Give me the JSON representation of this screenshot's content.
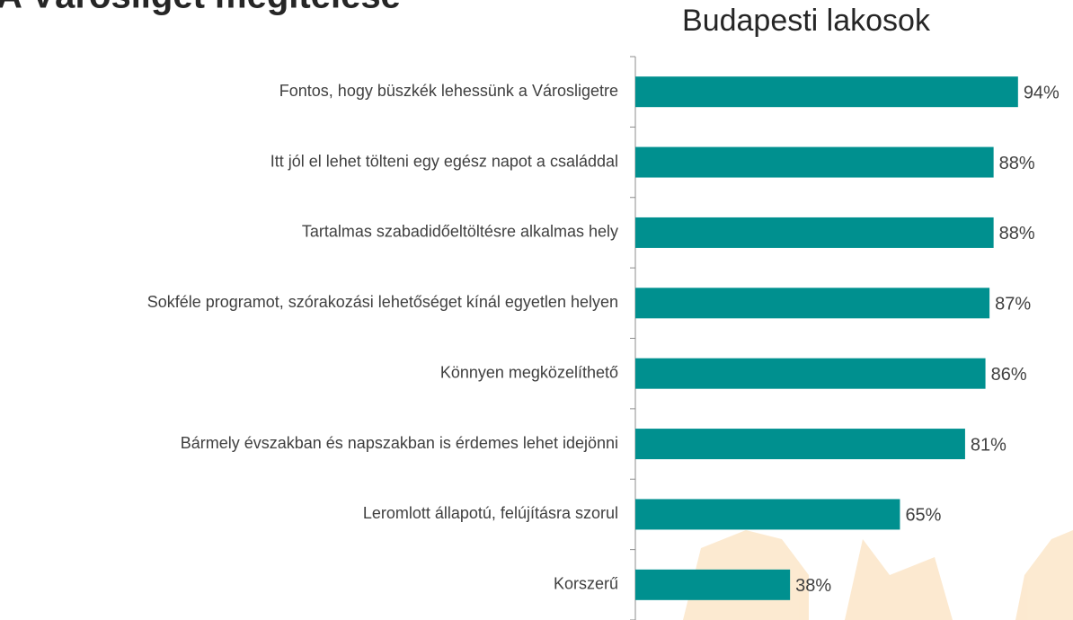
{
  "chart_data": {
    "type": "bar",
    "orientation": "horizontal",
    "title": "A Városliget megítélése",
    "subtitle": "Budapesti lakosok",
    "categories": [
      "Fontos, hogy büszkék lehessünk a Városligetre",
      "Itt jól el lehet tölteni egy egész napot a családdal",
      "Tartalmas szabadidőeltöltésre alkalmas hely",
      "Sokféle programot, szórakozási lehetőséget kínál egyetlen helyen",
      "Könnyen megközelíthető",
      "Bármely évszakban és napszakban is érdemes lehet idejönni",
      "Leromlott állapotú, felújításra szorul",
      "Korszerű"
    ],
    "values": [
      94,
      88,
      88,
      87,
      86,
      81,
      65,
      38
    ],
    "value_labels": [
      "94%",
      "88%",
      "88%",
      "87%",
      "86%",
      "81%",
      "65%",
      "38%"
    ],
    "color": "#00908f",
    "xlim": [
      0,
      100
    ]
  }
}
